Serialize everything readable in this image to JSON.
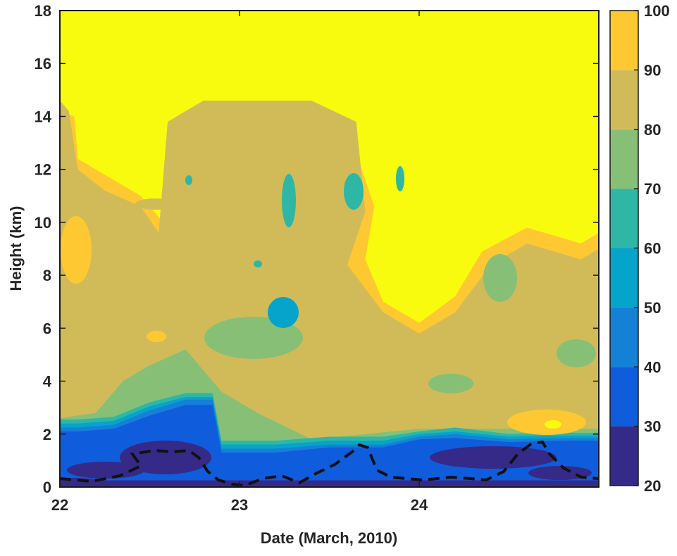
{
  "chart_data": {
    "type": "heatmap",
    "title": "",
    "xlabel": "Date (March, 2010)",
    "ylabel": "Height (km)",
    "xlim": [
      22,
      25
    ],
    "ylim": [
      0,
      18
    ],
    "xticks": [
      {
        "value": 22,
        "label": "22"
      },
      {
        "value": 23,
        "label": "23"
      },
      {
        "value": 24,
        "label": "24"
      }
    ],
    "yticks": [
      {
        "value": 0,
        "label": "0"
      },
      {
        "value": 2,
        "label": "2"
      },
      {
        "value": 4,
        "label": "4"
      },
      {
        "value": 6,
        "label": "6"
      },
      {
        "value": 8,
        "label": "8"
      },
      {
        "value": 10,
        "label": "10"
      },
      {
        "value": 12,
        "label": "12"
      },
      {
        "value": 14,
        "label": "14"
      },
      {
        "value": 16,
        "label": "16"
      },
      {
        "value": 18,
        "label": "18"
      }
    ],
    "colorbar": {
      "levels": [
        20,
        30,
        40,
        50,
        60,
        70,
        80,
        90,
        100
      ],
      "labels": [
        "20",
        "30",
        "40",
        "50",
        "60",
        "70",
        "80",
        "90",
        "100"
      ],
      "colors": [
        "#352a87",
        "#0f5cdd",
        "#1481d6",
        "#06a4ca",
        "#2eb7a4",
        "#87bf77",
        "#d1bb59",
        "#fec832",
        "#f9fb0e"
      ]
    },
    "contour_bands": [
      {
        "band": 1,
        "min": 30,
        "max": 40,
        "points": [
          [
            22,
            0
          ],
          [
            25,
            0
          ],
          [
            25,
            1.75
          ],
          [
            24.8,
            1.75
          ],
          [
            24.5,
            1.7
          ],
          [
            24.2,
            1.85
          ],
          [
            24,
            1.8
          ],
          [
            23.8,
            1.5
          ],
          [
            23.5,
            1.5
          ],
          [
            23.2,
            1.3
          ],
          [
            22.9,
            1.3
          ],
          [
            22.85,
            3.1
          ],
          [
            22.7,
            3.1
          ],
          [
            22.5,
            2.7
          ],
          [
            22.3,
            2.2
          ],
          [
            22.1,
            2.1
          ],
          [
            22,
            2.1
          ]
        ]
      },
      {
        "band": 2,
        "min": 40,
        "max": 50,
        "points": [
          [
            22,
            0
          ],
          [
            25,
            0
          ],
          [
            25,
            1.85
          ],
          [
            24.8,
            1.85
          ],
          [
            24.5,
            1.8
          ],
          [
            24.2,
            2
          ],
          [
            24,
            1.9
          ],
          [
            23.8,
            1.6
          ],
          [
            23.5,
            1.6
          ],
          [
            23.2,
            1.45
          ],
          [
            22.9,
            1.45
          ],
          [
            22.85,
            3.3
          ],
          [
            22.7,
            3.3
          ],
          [
            22.5,
            2.9
          ],
          [
            22.3,
            2.35
          ],
          [
            22.1,
            2.25
          ],
          [
            22,
            2.25
          ]
        ]
      },
      {
        "band": 3,
        "min": 50,
        "max": 60,
        "points": [
          [
            22,
            0
          ],
          [
            25,
            0
          ],
          [
            25,
            1.95
          ],
          [
            24.8,
            1.95
          ],
          [
            24.5,
            1.9
          ],
          [
            24.2,
            2.1
          ],
          [
            24,
            2
          ],
          [
            23.8,
            1.75
          ],
          [
            23.5,
            1.75
          ],
          [
            23.2,
            1.6
          ],
          [
            22.9,
            1.6
          ],
          [
            22.85,
            3.4
          ],
          [
            22.7,
            3.4
          ],
          [
            22.5,
            3.05
          ],
          [
            22.3,
            2.5
          ],
          [
            22.1,
            2.4
          ],
          [
            22,
            2.4
          ]
        ]
      },
      {
        "band": 4,
        "min": 60,
        "max": 70,
        "points": [
          [
            22,
            0
          ],
          [
            25,
            0
          ],
          [
            25,
            2.05
          ],
          [
            24.8,
            2.05
          ],
          [
            24.5,
            2
          ],
          [
            24.2,
            2.25
          ],
          [
            24,
            2.1
          ],
          [
            23.8,
            1.9
          ],
          [
            23.5,
            1.9
          ],
          [
            23.2,
            1.75
          ],
          [
            22.9,
            1.75
          ],
          [
            22.85,
            3.55
          ],
          [
            22.7,
            3.55
          ],
          [
            22.5,
            3.2
          ],
          [
            22.3,
            2.65
          ],
          [
            22.1,
            2.55
          ],
          [
            22,
            2.55
          ]
        ]
      },
      {
        "band": 5,
        "min": 70,
        "max": 80,
        "points": [
          [
            22,
            0
          ],
          [
            25,
            0
          ],
          [
            25,
            2.2
          ],
          [
            24.6,
            2.2
          ],
          [
            24.3,
            2.2
          ],
          [
            24,
            2.2
          ],
          [
            23.7,
            2
          ],
          [
            23.4,
            1.8
          ],
          [
            23.1,
            2.8
          ],
          [
            22.9,
            3.6
          ],
          [
            22.7,
            5.2
          ],
          [
            22.5,
            4.6
          ],
          [
            22.35,
            4
          ],
          [
            22.2,
            2.8
          ],
          [
            22,
            2.6
          ]
        ]
      },
      {
        "band": 6,
        "min": 80,
        "max": 90,
        "points": [
          [
            22,
            0
          ],
          [
            25,
            0
          ],
          [
            25,
            9
          ],
          [
            24.9,
            8.6
          ],
          [
            24.6,
            9.2
          ],
          [
            24.4,
            8.4
          ],
          [
            24.2,
            6.6
          ],
          [
            24,
            5.8
          ],
          [
            23.8,
            6.6
          ],
          [
            23.6,
            8.4
          ],
          [
            23.7,
            10.4
          ],
          [
            23.65,
            13.8
          ],
          [
            23.4,
            14.6
          ],
          [
            22.8,
            14.6
          ],
          [
            22.6,
            13.8
          ],
          [
            22.55,
            9.6
          ],
          [
            22.45,
            10.6
          ],
          [
            22.25,
            11.2
          ],
          [
            22.1,
            12
          ],
          [
            22.05,
            14.2
          ],
          [
            22,
            14.6
          ]
        ]
      },
      {
        "band": 7,
        "min": 90,
        "max": 100,
        "points": [
          [
            22,
            0
          ],
          [
            25,
            0
          ],
          [
            25,
            9.6
          ],
          [
            24.9,
            9.2
          ],
          [
            24.6,
            9.8
          ],
          [
            24.35,
            8.9
          ],
          [
            24.2,
            7.2
          ],
          [
            24,
            6.2
          ],
          [
            23.8,
            7
          ],
          [
            23.7,
            8.6
          ],
          [
            23.75,
            10.6
          ],
          [
            23.6,
            13.6
          ],
          [
            23.35,
            14.2
          ],
          [
            22.85,
            14.2
          ],
          [
            22.65,
            13.4
          ],
          [
            22.6,
            9.8
          ],
          [
            22.45,
            11
          ],
          [
            22.3,
            11.6
          ],
          [
            22.1,
            12.4
          ],
          [
            22.08,
            14
          ],
          [
            22,
            14.2
          ]
        ]
      }
    ]
  }
}
